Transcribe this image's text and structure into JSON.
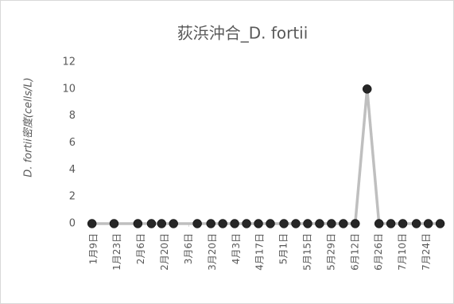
{
  "chart_data": {
    "type": "line",
    "title": "荻浜沖合_D. fortii",
    "y_label": "D. fortii密度(cells/L)",
    "x": [
      8,
      21,
      35,
      43,
      49,
      56,
      70,
      78,
      85,
      92,
      99,
      106,
      113,
      121,
      128,
      135,
      142,
      149,
      156,
      163,
      170,
      177,
      184,
      191,
      199,
      206,
      213
    ],
    "series": [
      {
        "name": "D. fortii",
        "color": "#bfbfbf",
        "marker_color": "#262626",
        "values": [
          0,
          0,
          0,
          0,
          0,
          0,
          0,
          0,
          0,
          0,
          0,
          0,
          0,
          0,
          0,
          0,
          0,
          0,
          0,
          0,
          10,
          0,
          0,
          0,
          0,
          0,
          0
        ]
      }
    ],
    "xlim": [
      3,
      216
    ],
    "xticks": [
      {
        "value": 9,
        "label": "1月9日"
      },
      {
        "value": 23,
        "label": "1月23日"
      },
      {
        "value": 37,
        "label": "2月6日"
      },
      {
        "value": 51,
        "label": "2月20日"
      },
      {
        "value": 65,
        "label": "3月6日"
      },
      {
        "value": 79,
        "label": "3月20日"
      },
      {
        "value": 93,
        "label": "4月3日"
      },
      {
        "value": 107,
        "label": "4月17日"
      },
      {
        "value": 121,
        "label": "5月1日"
      },
      {
        "value": 135,
        "label": "5月15日"
      },
      {
        "value": 149,
        "label": "5月29日"
      },
      {
        "value": 163,
        "label": "6月12日"
      },
      {
        "value": 177,
        "label": "6月26日"
      },
      {
        "value": 191,
        "label": "7月10日"
      },
      {
        "value": 205,
        "label": "7月24日"
      }
    ],
    "ylim": [
      0,
      12
    ],
    "yticks": [
      0,
      2,
      4,
      6,
      8,
      10,
      12
    ],
    "grid": false
  }
}
